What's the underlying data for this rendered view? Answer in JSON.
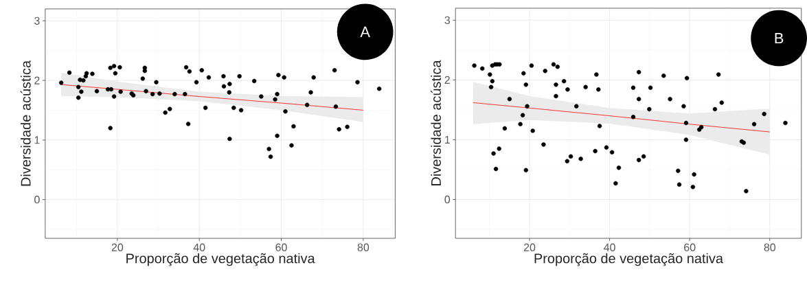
{
  "chart_data": [
    {
      "type": "scatter",
      "xlabel": "Proporção de vegetação nativa",
      "ylabel": "Diversidade acústica",
      "annotations": [
        "A"
      ],
      "xlim": [
        2.4,
        87.8
      ],
      "ylim": [
        -0.65,
        3.2
      ],
      "xticks": [
        20,
        40,
        60,
        80
      ],
      "yticks": [
        0,
        1,
        2,
        3
      ],
      "grid": true,
      "series": [
        {
          "type": "scatter",
          "color": "#000000",
          "x": [
            6.3,
            8.3,
            10.5,
            10.9,
            10.5,
            11.2,
            11.7,
            12.5,
            12.3,
            13.9,
            15.0,
            17.7,
            18.3,
            19.2,
            19.5,
            20.6,
            18.3,
            19.2,
            18.5,
            20.8,
            23.5,
            23.9,
            26.2,
            26.7,
            26.7,
            27.0,
            28.6,
            29.5,
            30.3,
            31.7,
            32.8,
            34.0,
            36.5,
            36.8,
            37.6,
            37.3,
            39.3,
            40.6,
            41.5,
            42.3,
            45.9,
            46.0,
            47.4,
            47.3,
            47.4,
            48.4,
            49.8,
            50.2,
            53.4,
            55.1,
            57.0,
            57.4,
            58.5,
            59.0,
            59.3,
            59.0,
            60.7,
            61.0,
            62.5,
            63.0,
            66.3,
            67.2,
            67.9,
            73.0,
            73.3,
            74.1,
            76.1,
            78.6,
            83.9
          ],
          "values": [
            1.96,
            2.13,
            1.89,
            2.01,
            1.71,
            1.81,
            2.0,
            2.12,
            2.07,
            2.11,
            1.82,
            1.85,
            2.21,
            2.24,
            2.12,
            2.22,
            1.2,
            1.73,
            1.85,
            1.81,
            1.78,
            1.75,
            2.03,
            2.21,
            2.16,
            1.82,
            1.77,
            1.97,
            1.78,
            1.46,
            1.52,
            1.77,
            1.77,
            2.22,
            2.15,
            1.27,
            1.97,
            2.17,
            1.54,
            2.05,
            2.07,
            1.9,
            1.94,
            1.8,
            1.02,
            1.54,
            2.07,
            1.5,
            1.99,
            1.73,
            0.85,
            0.72,
            1.68,
            1.77,
            2.09,
            1.07,
            2.05,
            1.48,
            0.91,
            1.23,
            1.59,
            1.8,
            2.05,
            2.17,
            1.56,
            1.18,
            1.22,
            1.97,
            1.86
          ]
        },
        {
          "type": "line",
          "color": "#ff3333",
          "x": [
            6.3,
            20,
            40,
            60,
            80
          ],
          "values": [
            1.93,
            1.85,
            1.73,
            1.62,
            1.5
          ],
          "lower": [
            1.74,
            1.72,
            1.65,
            1.5,
            1.3
          ],
          "upper": [
            2.13,
            1.98,
            1.81,
            1.74,
            1.72
          ]
        }
      ]
    },
    {
      "type": "scatter",
      "xlabel": "Proporção de vegetação nativa",
      "ylabel": "Diversidade acústica",
      "annotations": [
        "B"
      ],
      "xlim": [
        1.5,
        87.9
      ],
      "ylim": [
        -0.65,
        3.2
      ],
      "xticks": [
        20,
        40,
        60,
        80
      ],
      "yticks": [
        0,
        1,
        2,
        3
      ],
      "grid": true,
      "series": [
        {
          "type": "scatter",
          "color": "#000000",
          "x": [
            6.2,
            8.2,
            10.7,
            11.4,
            11.9,
            12.5,
            10.1,
            10.7,
            10.4,
            11.0,
            12.4,
            11.6,
            15.0,
            13.8,
            18.5,
            19.1,
            20.5,
            17.7,
            18.3,
            19.4,
            20.8,
            19.1,
            23.9,
            23.5,
            26.0,
            27.0,
            26.6,
            26.6,
            28.6,
            29.5,
            31.7,
            29.4,
            30.3,
            32.8,
            34.0,
            36.7,
            37.2,
            37.5,
            36.4,
            39.2,
            40.6,
            42.3,
            41.5,
            45.9,
            47.3,
            47.3,
            45.9,
            49.9,
            50.2,
            47.3,
            48.5,
            53.5,
            55.1,
            57.1,
            57.4,
            58.5,
            59.1,
            59.1,
            59.3,
            61.1,
            60.8,
            62.4,
            62.9,
            66.3,
            67.2,
            68.0,
            73.0,
            73.5,
            74.1,
            76.1,
            78.6,
            83.9
          ],
          "values": [
            2.24,
            2.19,
            2.24,
            2.26,
            2.26,
            2.26,
            2.09,
            1.98,
            1.88,
            0.77,
            0.85,
            0.51,
            1.68,
            1.19,
            2.11,
            1.92,
            2.24,
            1.26,
            1.41,
            1.56,
            1.15,
            0.49,
            2.15,
            0.92,
            2.26,
            2.22,
            1.92,
            1.73,
            1.98,
            1.84,
            1.56,
            0.64,
            0.72,
            0.68,
            1.88,
            2.09,
            1.84,
            1.23,
            0.81,
            0.87,
            0.79,
            0.53,
            0.27,
            1.87,
            2.13,
            1.68,
            1.38,
            1.51,
            1.87,
            0.66,
            0.72,
            2.07,
            1.68,
            0.48,
            0.25,
            1.56,
            1.28,
            1.0,
            2.03,
            0.42,
            0.21,
            1.17,
            1.21,
            1.51,
            2.09,
            1.62,
            0.97,
            0.95,
            0.14,
            1.26,
            1.43,
            1.28
          ]
        },
        {
          "type": "line",
          "color": "#ff3333",
          "x": [
            5.9,
            20,
            40,
            60,
            80
          ],
          "values": [
            1.62,
            1.53,
            1.4,
            1.26,
            1.13
          ],
          "lower": [
            1.26,
            1.33,
            1.27,
            1.08,
            0.75
          ],
          "upper": [
            1.97,
            1.73,
            1.53,
            1.44,
            1.52
          ]
        }
      ]
    }
  ]
}
